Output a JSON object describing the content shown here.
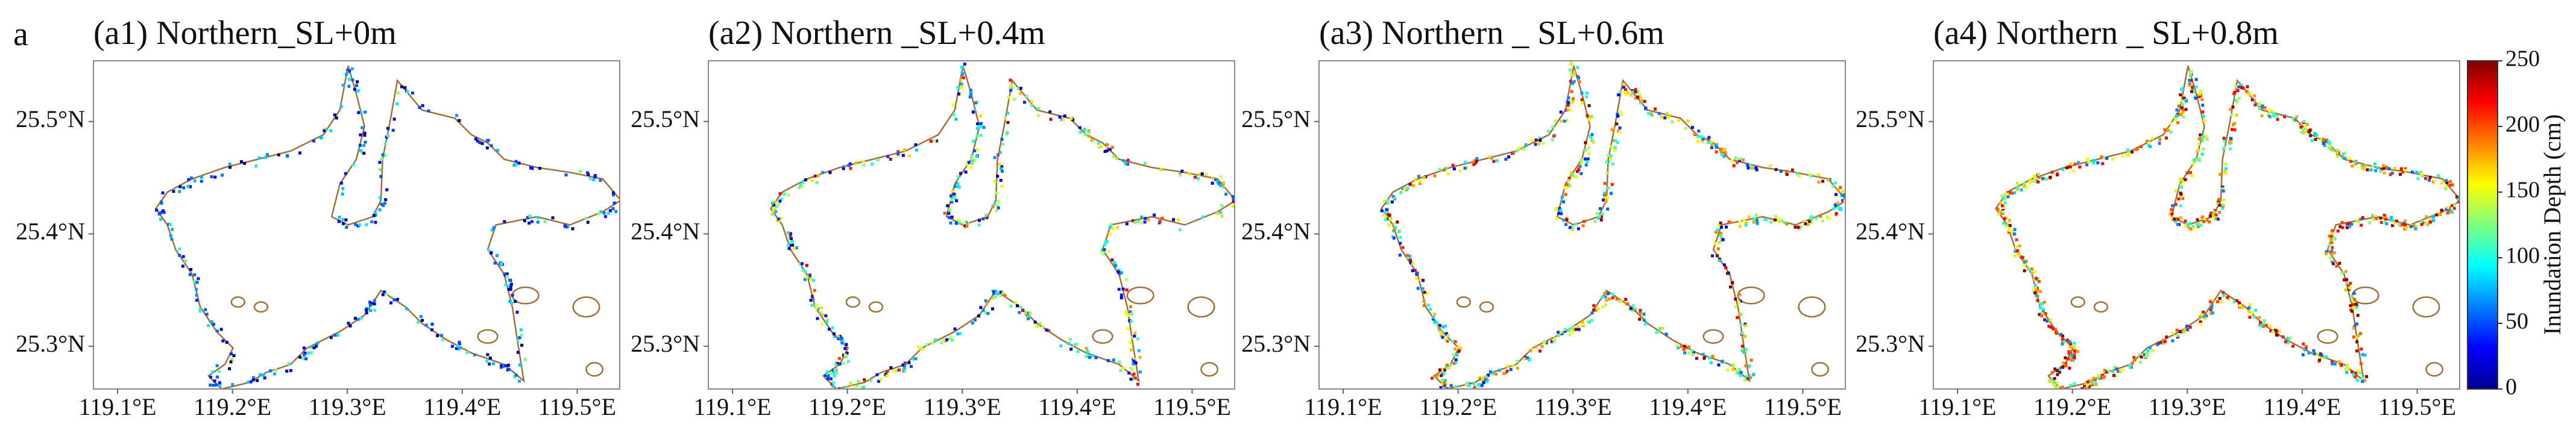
{
  "figure_label": "a",
  "panels": [
    {
      "title": "(a1) Northern_SL+0m"
    },
    {
      "title": "(a2) Northern _SL+0.4m"
    },
    {
      "title": "(a3) Northern _ SL+0.6m"
    },
    {
      "title": "(a4) Northern _ SL+0.8m"
    }
  ],
  "map": {
    "lon_range": [
      119.079,
      119.537
    ],
    "lat_range": [
      25.262,
      25.554
    ],
    "lon_ticks": [
      {
        "value": 119.1,
        "label": "119.1°E"
      },
      {
        "value": 119.2,
        "label": "119.2°E"
      },
      {
        "value": 119.3,
        "label": "119.3°E"
      },
      {
        "value": 119.4,
        "label": "119.4°E"
      },
      {
        "value": 119.5,
        "label": "119.5°E"
      }
    ],
    "lat_ticks": [
      {
        "value": 25.3,
        "label": "25.3°N"
      },
      {
        "value": 25.4,
        "label": "25.4°N"
      },
      {
        "value": 25.5,
        "label": "25.5°N"
      }
    ]
  },
  "colorbar": {
    "label": "Inundation Depth (cm)",
    "range": [
      0,
      250
    ],
    "ticks": [
      0,
      50,
      100,
      150,
      200,
      250
    ]
  }
}
